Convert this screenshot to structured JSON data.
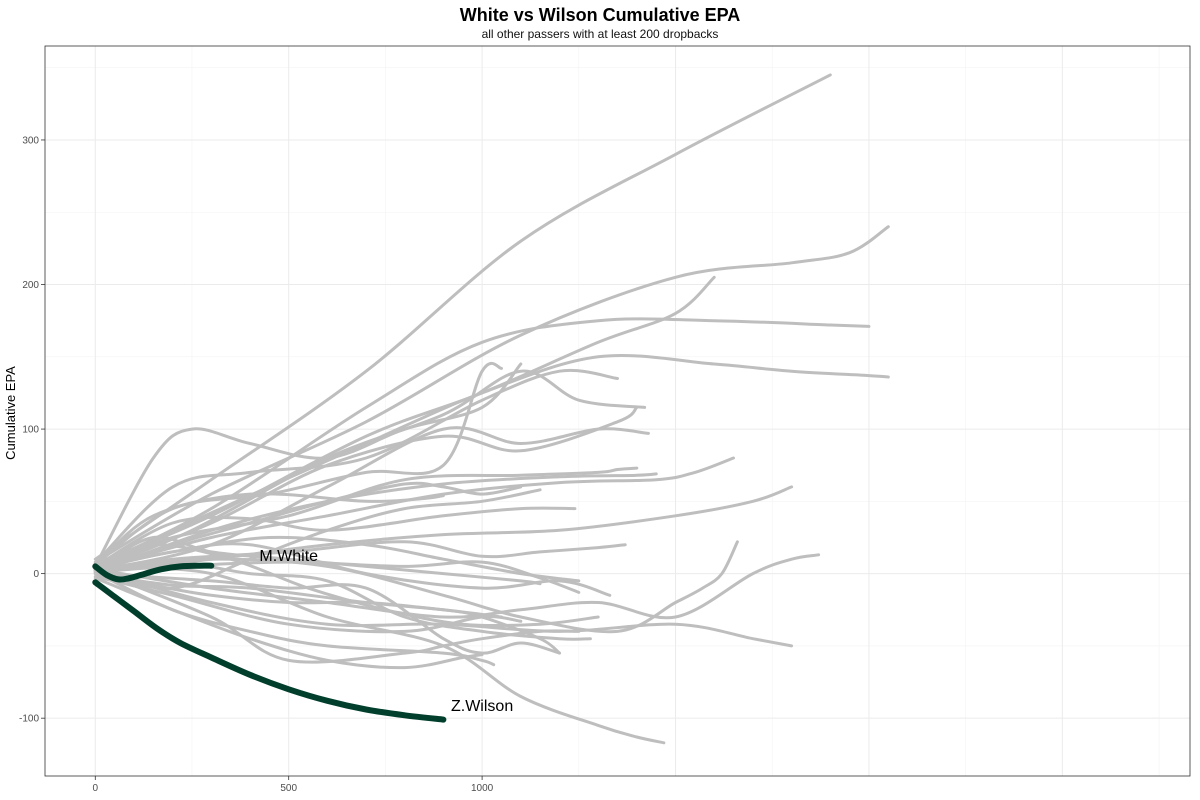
{
  "chart_data": {
    "type": "line",
    "title": "White vs Wilson Cumulative EPA",
    "subtitle": "all other passers with at least 200 dropbacks",
    "xlabel": "",
    "ylabel": "Cumulative EPA",
    "xlim": [
      -130,
      2830
    ],
    "ylim": [
      -140,
      365
    ],
    "x_ticks": [
      0,
      500,
      1000
    ],
    "y_ticks": [
      -100,
      0,
      100,
      200,
      300
    ],
    "grid": true,
    "legend": "none",
    "colors": {
      "other": "#bebebe",
      "highlight": "#013f2c"
    },
    "highlighted": [
      {
        "name": "M.White",
        "label": "M.White",
        "points": [
          [
            0,
            5
          ],
          [
            30,
            -1
          ],
          [
            60,
            -4
          ],
          [
            90,
            -3
          ],
          [
            130,
            0
          ],
          [
            170,
            3
          ],
          [
            220,
            5
          ],
          [
            270,
            5.5
          ],
          [
            300,
            5.5
          ]
        ]
      },
      {
        "name": "Z.Wilson",
        "label": "Z.Wilson",
        "points": [
          [
            0,
            -6
          ],
          [
            50,
            -16
          ],
          [
            100,
            -26
          ],
          [
            160,
            -38
          ],
          [
            220,
            -48
          ],
          [
            300,
            -58
          ],
          [
            400,
            -70
          ],
          [
            500,
            -80
          ],
          [
            600,
            -88
          ],
          [
            700,
            -94
          ],
          [
            800,
            -98
          ],
          [
            900,
            -101
          ]
        ]
      }
    ],
    "others": [
      {
        "points": [
          [
            0,
            10
          ],
          [
            300,
            65
          ],
          [
            700,
            140
          ],
          [
            1100,
            230
          ],
          [
            1500,
            290
          ],
          [
            1900,
            345
          ]
        ]
      },
      {
        "points": [
          [
            0,
            8
          ],
          [
            300,
            55
          ],
          [
            700,
            105
          ],
          [
            1100,
            165
          ],
          [
            1500,
            205
          ],
          [
            1800,
            215
          ],
          [
            1950,
            222
          ],
          [
            2050,
            240
          ]
        ]
      },
      {
        "points": [
          [
            0,
            5
          ],
          [
            300,
            45
          ],
          [
            700,
            115
          ],
          [
            1000,
            160
          ],
          [
            1300,
            175
          ],
          [
            1600,
            175
          ],
          [
            1900,
            172
          ],
          [
            2000,
            171
          ]
        ]
      },
      {
        "points": [
          [
            0,
            4
          ],
          [
            300,
            42
          ],
          [
            700,
            90
          ],
          [
            1000,
            125
          ],
          [
            1300,
            150
          ],
          [
            1600,
            145
          ],
          [
            1800,
            140
          ],
          [
            2000,
            137
          ],
          [
            2050,
            136
          ]
        ]
      },
      {
        "points": [
          [
            0,
            6
          ],
          [
            300,
            40
          ],
          [
            700,
            95
          ],
          [
            1000,
            125
          ],
          [
            1300,
            160
          ],
          [
            1500,
            180
          ],
          [
            1600,
            205
          ]
        ]
      },
      {
        "points": [
          [
            0,
            3
          ],
          [
            250,
            30
          ],
          [
            600,
            80
          ],
          [
            900,
            110
          ],
          [
            1100,
            140
          ],
          [
            1250,
            120
          ],
          [
            1420,
            115
          ]
        ]
      },
      {
        "points": [
          [
            0,
            7
          ],
          [
            200,
            60
          ],
          [
            400,
            70
          ],
          [
            700,
            80
          ],
          [
            1000,
            120
          ],
          [
            1200,
            140
          ],
          [
            1350,
            135
          ]
        ]
      },
      {
        "points": [
          [
            0,
            2
          ],
          [
            300,
            20
          ],
          [
            600,
            60
          ],
          [
            900,
            100
          ],
          [
            1100,
            90
          ],
          [
            1300,
            100
          ],
          [
            1430,
            97
          ]
        ]
      },
      {
        "points": [
          [
            0,
            4
          ],
          [
            300,
            35
          ],
          [
            600,
            75
          ],
          [
            900,
            95
          ],
          [
            1100,
            85
          ],
          [
            1350,
            105
          ],
          [
            1400,
            115
          ]
        ]
      },
      {
        "points": [
          [
            0,
            5
          ],
          [
            150,
            80
          ],
          [
            250,
            100
          ],
          [
            400,
            90
          ],
          [
            600,
            80
          ],
          [
            800,
            100
          ],
          [
            1000,
            115
          ],
          [
            1100,
            145
          ]
        ]
      },
      {
        "points": [
          [
            0,
            6
          ],
          [
            200,
            45
          ],
          [
            450,
            55
          ],
          [
            700,
            70
          ],
          [
            900,
            75
          ],
          [
            1000,
            140
          ],
          [
            1050,
            142
          ]
        ]
      },
      {
        "points": [
          [
            0,
            3
          ],
          [
            200,
            25
          ],
          [
            500,
            40
          ],
          [
            800,
            65
          ],
          [
            1100,
            68
          ],
          [
            1300,
            70
          ],
          [
            1350,
            72
          ],
          [
            1400,
            73
          ]
        ]
      },
      {
        "points": [
          [
            0,
            1
          ],
          [
            300,
            30
          ],
          [
            600,
            50
          ],
          [
            900,
            62
          ],
          [
            1200,
            67
          ],
          [
            1400,
            68
          ],
          [
            1450,
            69
          ]
        ]
      },
      {
        "points": [
          [
            0,
            3
          ],
          [
            300,
            25
          ],
          [
            600,
            40
          ],
          [
            900,
            55
          ],
          [
            1200,
            63
          ],
          [
            1450,
            65
          ],
          [
            1550,
            70
          ],
          [
            1650,
            80
          ]
        ]
      },
      {
        "points": [
          [
            0,
            2
          ],
          [
            300,
            10
          ],
          [
            600,
            20
          ],
          [
            900,
            27
          ],
          [
            1200,
            30
          ],
          [
            1500,
            40
          ],
          [
            1700,
            50
          ],
          [
            1800,
            60
          ]
        ]
      },
      {
        "points": [
          [
            0,
            5
          ],
          [
            200,
            35
          ],
          [
            400,
            38
          ],
          [
            600,
            30
          ],
          [
            900,
            40
          ],
          [
            1100,
            45
          ],
          [
            1240,
            45
          ]
        ]
      },
      {
        "points": [
          [
            0,
            2
          ],
          [
            200,
            10
          ],
          [
            500,
            15
          ],
          [
            800,
            22
          ],
          [
            1000,
            12
          ],
          [
            1150,
            15
          ],
          [
            1300,
            18
          ],
          [
            1370,
            20
          ]
        ]
      },
      {
        "points": [
          [
            0,
            1
          ],
          [
            200,
            5
          ],
          [
            500,
            8
          ],
          [
            800,
            5
          ],
          [
            1000,
            8
          ],
          [
            1150,
            -3
          ],
          [
            1250,
            -13
          ]
        ]
      },
      {
        "points": [
          [
            0,
            3
          ],
          [
            200,
            15
          ],
          [
            400,
            20
          ],
          [
            700,
            0
          ],
          [
            1000,
            -10
          ],
          [
            1200,
            -5
          ],
          [
            1330,
            -15
          ]
        ]
      },
      {
        "points": [
          [
            0,
            5
          ],
          [
            150,
            40
          ],
          [
            400,
            55
          ],
          [
            700,
            50
          ],
          [
            850,
            52
          ],
          [
            900,
            54
          ]
        ]
      },
      {
        "points": [
          [
            0,
            0
          ],
          [
            200,
            -8
          ],
          [
            400,
            -10
          ],
          [
            700,
            -20
          ],
          [
            900,
            -25
          ],
          [
            1000,
            -30
          ],
          [
            1150,
            -45
          ],
          [
            1200,
            -55
          ]
        ]
      },
      {
        "points": [
          [
            0,
            -2
          ],
          [
            200,
            -15
          ],
          [
            500,
            -35
          ],
          [
            800,
            -40
          ],
          [
            1000,
            -30
          ],
          [
            1100,
            -33
          ]
        ]
      },
      {
        "points": [
          [
            0,
            2
          ],
          [
            300,
            -30
          ],
          [
            500,
            -60
          ],
          [
            800,
            -55
          ],
          [
            900,
            -50
          ],
          [
            1000,
            -45
          ],
          [
            1150,
            -40
          ],
          [
            1250,
            -40
          ]
        ]
      },
      {
        "points": [
          [
            0,
            2
          ],
          [
            300,
            -20
          ],
          [
            600,
            -35
          ],
          [
            900,
            -35
          ],
          [
            1200,
            -40
          ],
          [
            1500,
            -35
          ],
          [
            1700,
            -45
          ],
          [
            1800,
            -50
          ]
        ]
      },
      {
        "points": [
          [
            0,
            3
          ],
          [
            300,
            -10
          ],
          [
            600,
            -20
          ],
          [
            900,
            -30
          ],
          [
            1100,
            -25
          ],
          [
            1300,
            -20
          ],
          [
            1500,
            -30
          ],
          [
            1700,
            0
          ],
          [
            1800,
            10
          ],
          [
            1870,
            13
          ]
        ]
      },
      {
        "points": [
          [
            0,
            4
          ],
          [
            300,
            10
          ],
          [
            600,
            5
          ],
          [
            900,
            -15
          ],
          [
            1100,
            -30
          ],
          [
            1350,
            -40
          ],
          [
            1500,
            -20
          ],
          [
            1570,
            -10
          ],
          [
            1620,
            0
          ],
          [
            1660,
            22
          ]
        ]
      },
      {
        "points": [
          [
            0,
            -3
          ],
          [
            200,
            -25
          ],
          [
            400,
            -45
          ],
          [
            600,
            -60
          ],
          [
            800,
            -65
          ],
          [
            950,
            -58
          ],
          [
            1000,
            -56
          ]
        ]
      },
      {
        "points": [
          [
            0,
            0
          ],
          [
            300,
            -5
          ],
          [
            500,
            -10
          ],
          [
            700,
            -10
          ],
          [
            900,
            -45
          ],
          [
            1000,
            -55
          ],
          [
            1100,
            -48
          ],
          [
            1200,
            -55
          ]
        ]
      },
      {
        "points": [
          [
            0,
            1
          ],
          [
            200,
            -25
          ],
          [
            400,
            -40
          ],
          [
            600,
            -50
          ],
          [
            900,
            -55
          ],
          [
            1000,
            -60
          ],
          [
            1030,
            -63
          ]
        ]
      },
      {
        "points": [
          [
            0,
            4
          ],
          [
            300,
            0
          ],
          [
            600,
            -30
          ],
          [
            900,
            -50
          ],
          [
            1100,
            -85
          ],
          [
            1300,
            -105
          ],
          [
            1400,
            -113
          ],
          [
            1470,
            -117
          ]
        ]
      },
      {
        "points": [
          [
            0,
            2
          ],
          [
            200,
            20
          ],
          [
            400,
            35
          ],
          [
            600,
            50
          ],
          [
            800,
            62
          ],
          [
            900,
            60
          ],
          [
            1000,
            55
          ],
          [
            1100,
            60
          ]
        ]
      },
      {
        "points": [
          [
            0,
            3
          ],
          [
            150,
            25
          ],
          [
            300,
            15
          ],
          [
            500,
            10
          ],
          [
            700,
            5
          ],
          [
            900,
            0
          ],
          [
            1100,
            -5
          ],
          [
            1150,
            -7
          ]
        ]
      },
      {
        "points": [
          [
            0,
            1
          ],
          [
            150,
            -8
          ],
          [
            300,
            -15
          ],
          [
            500,
            -20
          ],
          [
            700,
            -20
          ],
          [
            900,
            -25
          ],
          [
            1050,
            -30
          ]
        ]
      },
      {
        "points": [
          [
            0,
            2
          ],
          [
            200,
            8
          ],
          [
            400,
            0
          ],
          [
            600,
            -5
          ],
          [
            800,
            -30
          ],
          [
            1000,
            -40
          ],
          [
            1200,
            -45
          ],
          [
            1280,
            -45
          ]
        ]
      },
      {
        "points": [
          [
            0,
            6
          ],
          [
            150,
            20
          ],
          [
            350,
            10
          ],
          [
            550,
            -10
          ],
          [
            750,
            -25
          ],
          [
            950,
            -35
          ],
          [
            1150,
            -35
          ],
          [
            1300,
            -30
          ]
        ]
      },
      {
        "points": [
          [
            0,
            0
          ],
          [
            200,
            -10
          ],
          [
            400,
            10
          ],
          [
            600,
            30
          ],
          [
            800,
            45
          ],
          [
            1000,
            50
          ],
          [
            1150,
            58
          ]
        ]
      },
      {
        "points": [
          [
            0,
            4
          ],
          [
            200,
            15
          ],
          [
            450,
            25
          ],
          [
            700,
            20
          ],
          [
            900,
            10
          ],
          [
            1100,
            0
          ],
          [
            1250,
            -5
          ]
        ]
      }
    ],
    "annotations": [
      {
        "text": "M.White",
        "x": 500,
        "y": 13
      },
      {
        "text": "Z.Wilson",
        "x": 1000,
        "y": -91
      }
    ]
  }
}
